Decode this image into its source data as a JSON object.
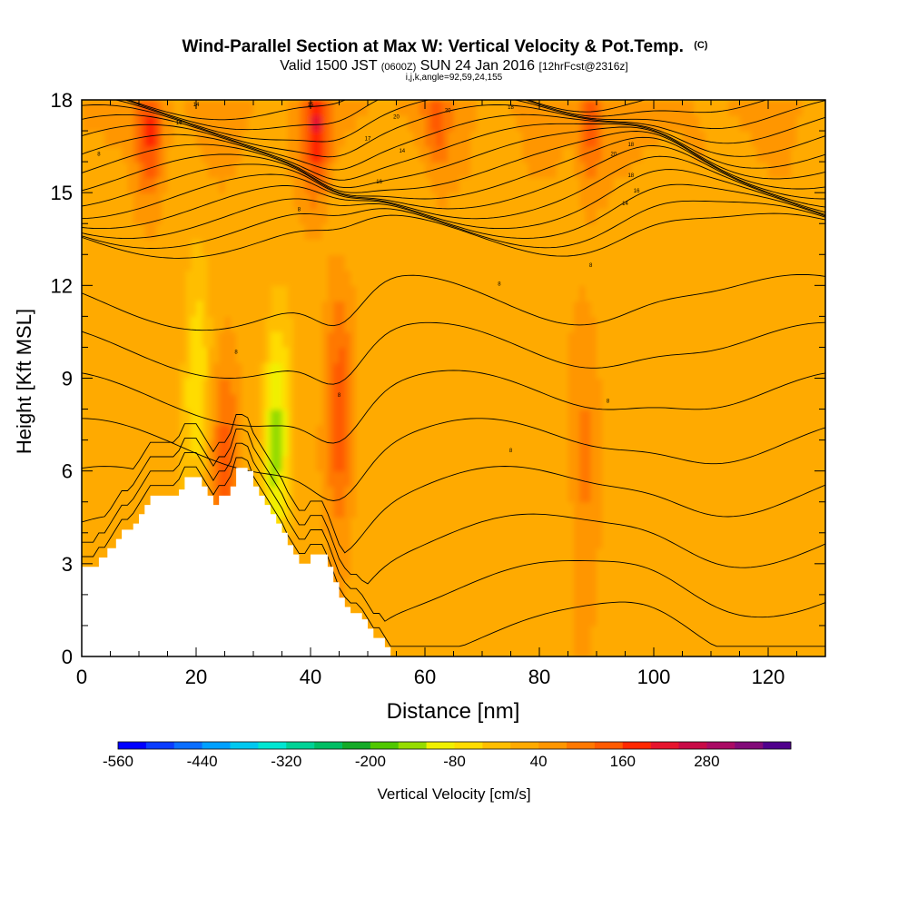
{
  "chart_data": {
    "type": "heatmap",
    "title_main": "Wind-Parallel Section at Max W: Vertical Velocity & Pot.Temp.",
    "title_mark": "(C)",
    "subtitle_a": "Valid 1500 JST",
    "subtitle_b": "(0600Z)",
    "subtitle_c": "SUN 24 Jan 2016",
    "subtitle_d": "[12hrFcst@2316z]",
    "subtitle2": "i,j,k,angle=92,59,24,155",
    "xlabel": "Distance [nm]",
    "ylabel": "Height [Kft MSL]",
    "xlim": [
      0,
      130
    ],
    "ylim": [
      0,
      18
    ],
    "x_ticks": [
      "0",
      "20",
      "40",
      "60",
      "80",
      "100",
      "120"
    ],
    "y_ticks": [
      "0",
      "3",
      "6",
      "9",
      "12",
      "15",
      "18"
    ],
    "colorbar": {
      "label": "Vertical Velocity [cm/s]",
      "tick_labels": [
        "-560",
        "-440",
        "-320",
        "-200",
        "-80",
        "40",
        "160",
        "280"
      ],
      "colors": [
        "#0000ff",
        "#0a3cff",
        "#0a6eff",
        "#00a0ff",
        "#00c8f0",
        "#00e6d2",
        "#00d296",
        "#00be64",
        "#14aa28",
        "#50c800",
        "#96dc00",
        "#f0f000",
        "#ffdc00",
        "#ffbe00",
        "#ffaa00",
        "#ff9600",
        "#ff7800",
        "#ff5a00",
        "#ff2800",
        "#e6142d",
        "#c80a46",
        "#aa0a64",
        "#820a78",
        "#50008c"
      ]
    },
    "terrain_kft": [
      [
        0,
        2.9
      ],
      [
        1.5,
        2.9
      ],
      [
        3,
        3.2
      ],
      [
        4.5,
        3.5
      ],
      [
        6,
        3.8
      ],
      [
        7,
        4.1
      ],
      [
        9,
        4.3
      ],
      [
        10,
        4.6
      ],
      [
        11,
        4.9
      ],
      [
        12,
        5.2
      ],
      [
        17,
        5.4
      ],
      [
        18,
        5.8
      ],
      [
        20,
        5.8
      ],
      [
        21,
        5.5
      ],
      [
        22,
        5.2
      ],
      [
        23,
        4.9
      ],
      [
        24,
        5.2
      ],
      [
        26,
        5.5
      ],
      [
        27,
        6.1
      ],
      [
        29,
        6.0
      ],
      [
        30,
        5.5
      ],
      [
        31,
        5.2
      ],
      [
        32,
        4.9
      ],
      [
        33,
        4.6
      ],
      [
        34,
        4.3
      ],
      [
        35,
        4.0
      ],
      [
        36,
        3.6
      ],
      [
        37,
        3.3
      ],
      [
        38,
        3.0
      ],
      [
        40,
        3.3
      ],
      [
        42,
        3.3
      ],
      [
        43,
        2.9
      ],
      [
        44,
        2.4
      ],
      [
        45,
        1.9
      ],
      [
        46,
        1.6
      ],
      [
        47,
        1.4
      ],
      [
        49,
        1.2
      ],
      [
        50,
        0.9
      ],
      [
        51,
        0.6
      ],
      [
        53,
        0.3
      ],
      [
        54,
        0
      ]
    ],
    "vertical_velocity_features": [
      {
        "x": 12,
        "z": 17.0,
        "w": 160
      },
      {
        "x": 20,
        "z": 9.0,
        "w": -80
      },
      {
        "x": 25,
        "z": 6.5,
        "w": 130
      },
      {
        "x": 34,
        "z": 7.0,
        "w": -140
      },
      {
        "x": 41,
        "z": 17.0,
        "w": 180
      },
      {
        "x": 45,
        "z": 7.5,
        "w": 150
      },
      {
        "x": 62,
        "z": 17.5,
        "w": 110
      },
      {
        "x": 88,
        "z": 6.0,
        "w": 100
      },
      {
        "x": 89,
        "z": 17.0,
        "w": 130
      }
    ],
    "theta_contour_labels": [
      "15",
      "14",
      "16",
      "20",
      "18",
      "20",
      "17",
      "18",
      "16",
      "14",
      "20",
      "18",
      "16",
      "14",
      "8",
      "8",
      "8",
      "8",
      "8",
      "8",
      "8",
      "8"
    ]
  }
}
